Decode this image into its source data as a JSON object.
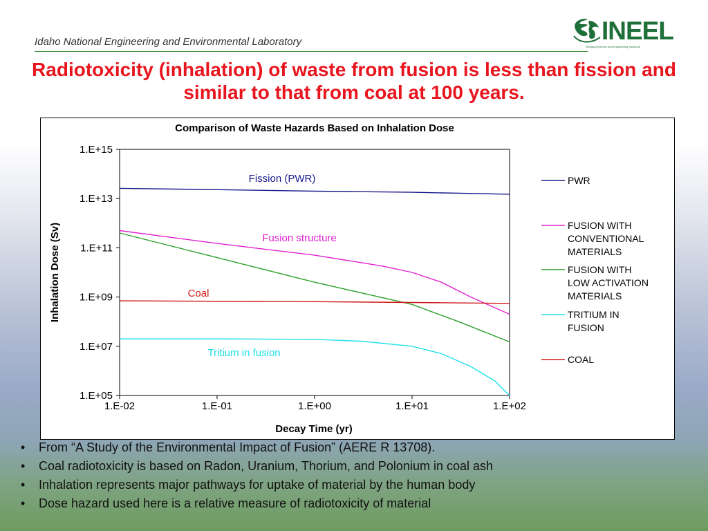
{
  "header": {
    "lab_name": "Idaho National Engineering and Environmental Laboratory",
    "logo_text": "INEEL",
    "logo_subtext": "Bringing Science and Engineering Solutions"
  },
  "slide_title": "Radiotoxicity (inhalation) of waste from fusion is less than fission and similar to that from  coal at 100 years.",
  "chart_data": {
    "type": "line",
    "title": "Comparison of Waste Hazards Based on Inhalation Dose",
    "xlabel": "Decay Time (yr)",
    "ylabel": "Inhalation Dose (Sv)",
    "x_scale": "log",
    "y_scale": "log",
    "xlim": [
      0.01,
      100
    ],
    "ylim": [
      100000,
      1000000000000000
    ],
    "x_ticks": [
      0.01,
      0.1,
      1,
      10,
      100
    ],
    "x_tick_labels": [
      "1.E-02",
      "1.E-01",
      "1.E+00",
      "1.E+01",
      "1.E+02"
    ],
    "y_ticks": [
      100000,
      10000000,
      1000000000,
      100000000000,
      10000000000000,
      1000000000000000
    ],
    "y_tick_labels": [
      "1.E+05",
      "1.E+07",
      "1.E+09",
      "1.E+11",
      "1.E+13",
      "1.E+15"
    ],
    "grid": false,
    "legend_position": "right",
    "series": [
      {
        "name": "PWR",
        "color": "#1a1a8c",
        "label": "Fission (PWR)",
        "x": [
          0.01,
          0.1,
          1,
          10,
          100
        ],
        "y": [
          26000000000000,
          23000000000000,
          20000000000000,
          18000000000000,
          15000000000000
        ]
      },
      {
        "name": "FUSION WITH CONVENTIONAL MATERIALS",
        "color": "#e020d0",
        "label": "Fusion structure",
        "x": [
          0.01,
          0.1,
          1,
          5,
          10,
          20,
          40,
          100
        ],
        "y": [
          500000000000,
          150000000000,
          50000000000,
          18000000000,
          10000000000,
          4000000000,
          1000000000,
          200000000
        ]
      },
      {
        "name": "FUSION WITH LOW ACTIVATION MATERIALS",
        "color": "#2ca02c",
        "label": "",
        "x": [
          0.01,
          0.1,
          1,
          10,
          30,
          100
        ],
        "y": [
          400000000000,
          40000000000,
          4000000000,
          500000000,
          100000000,
          15000000
        ]
      },
      {
        "name": "TRITIUM IN FUSION",
        "color": "#1fe0ea",
        "label": "Tritium in fusion",
        "x": [
          0.01,
          0.1,
          1,
          3,
          10,
          20,
          40,
          70,
          100
        ],
        "y": [
          20000000,
          20000000,
          19000000,
          16000000,
          10000000,
          5000000,
          1500000,
          400000,
          100000
        ]
      },
      {
        "name": "COAL",
        "color": "#d01818",
        "label": "Coal",
        "x": [
          0.01,
          1,
          10,
          100
        ],
        "y": [
          700000000,
          650000000,
          600000000,
          550000000
        ]
      }
    ],
    "legend_items": [
      [
        "PWR"
      ],
      [
        "FUSION WITH",
        "CONVENTIONAL",
        "MATERIALS"
      ],
      [
        " FUSION WITH",
        "LOW ACTIVATION",
        "MATERIALS"
      ],
      [
        "TRITIUM IN",
        "FUSION"
      ],
      [
        "COAL"
      ]
    ]
  },
  "bullets": [
    "From “A Study of the Environmental Impact of Fusion” (AERE R 13708).",
    "Coal radiotoxicity is based on Radon, Uranium, Thorium, and Polonium in coal ash",
    "Inhalation represents major pathways for uptake of material by the human body",
    "Dose hazard used here is a relative measure of radiotoxicity of material"
  ],
  "bullet_marker": "•"
}
